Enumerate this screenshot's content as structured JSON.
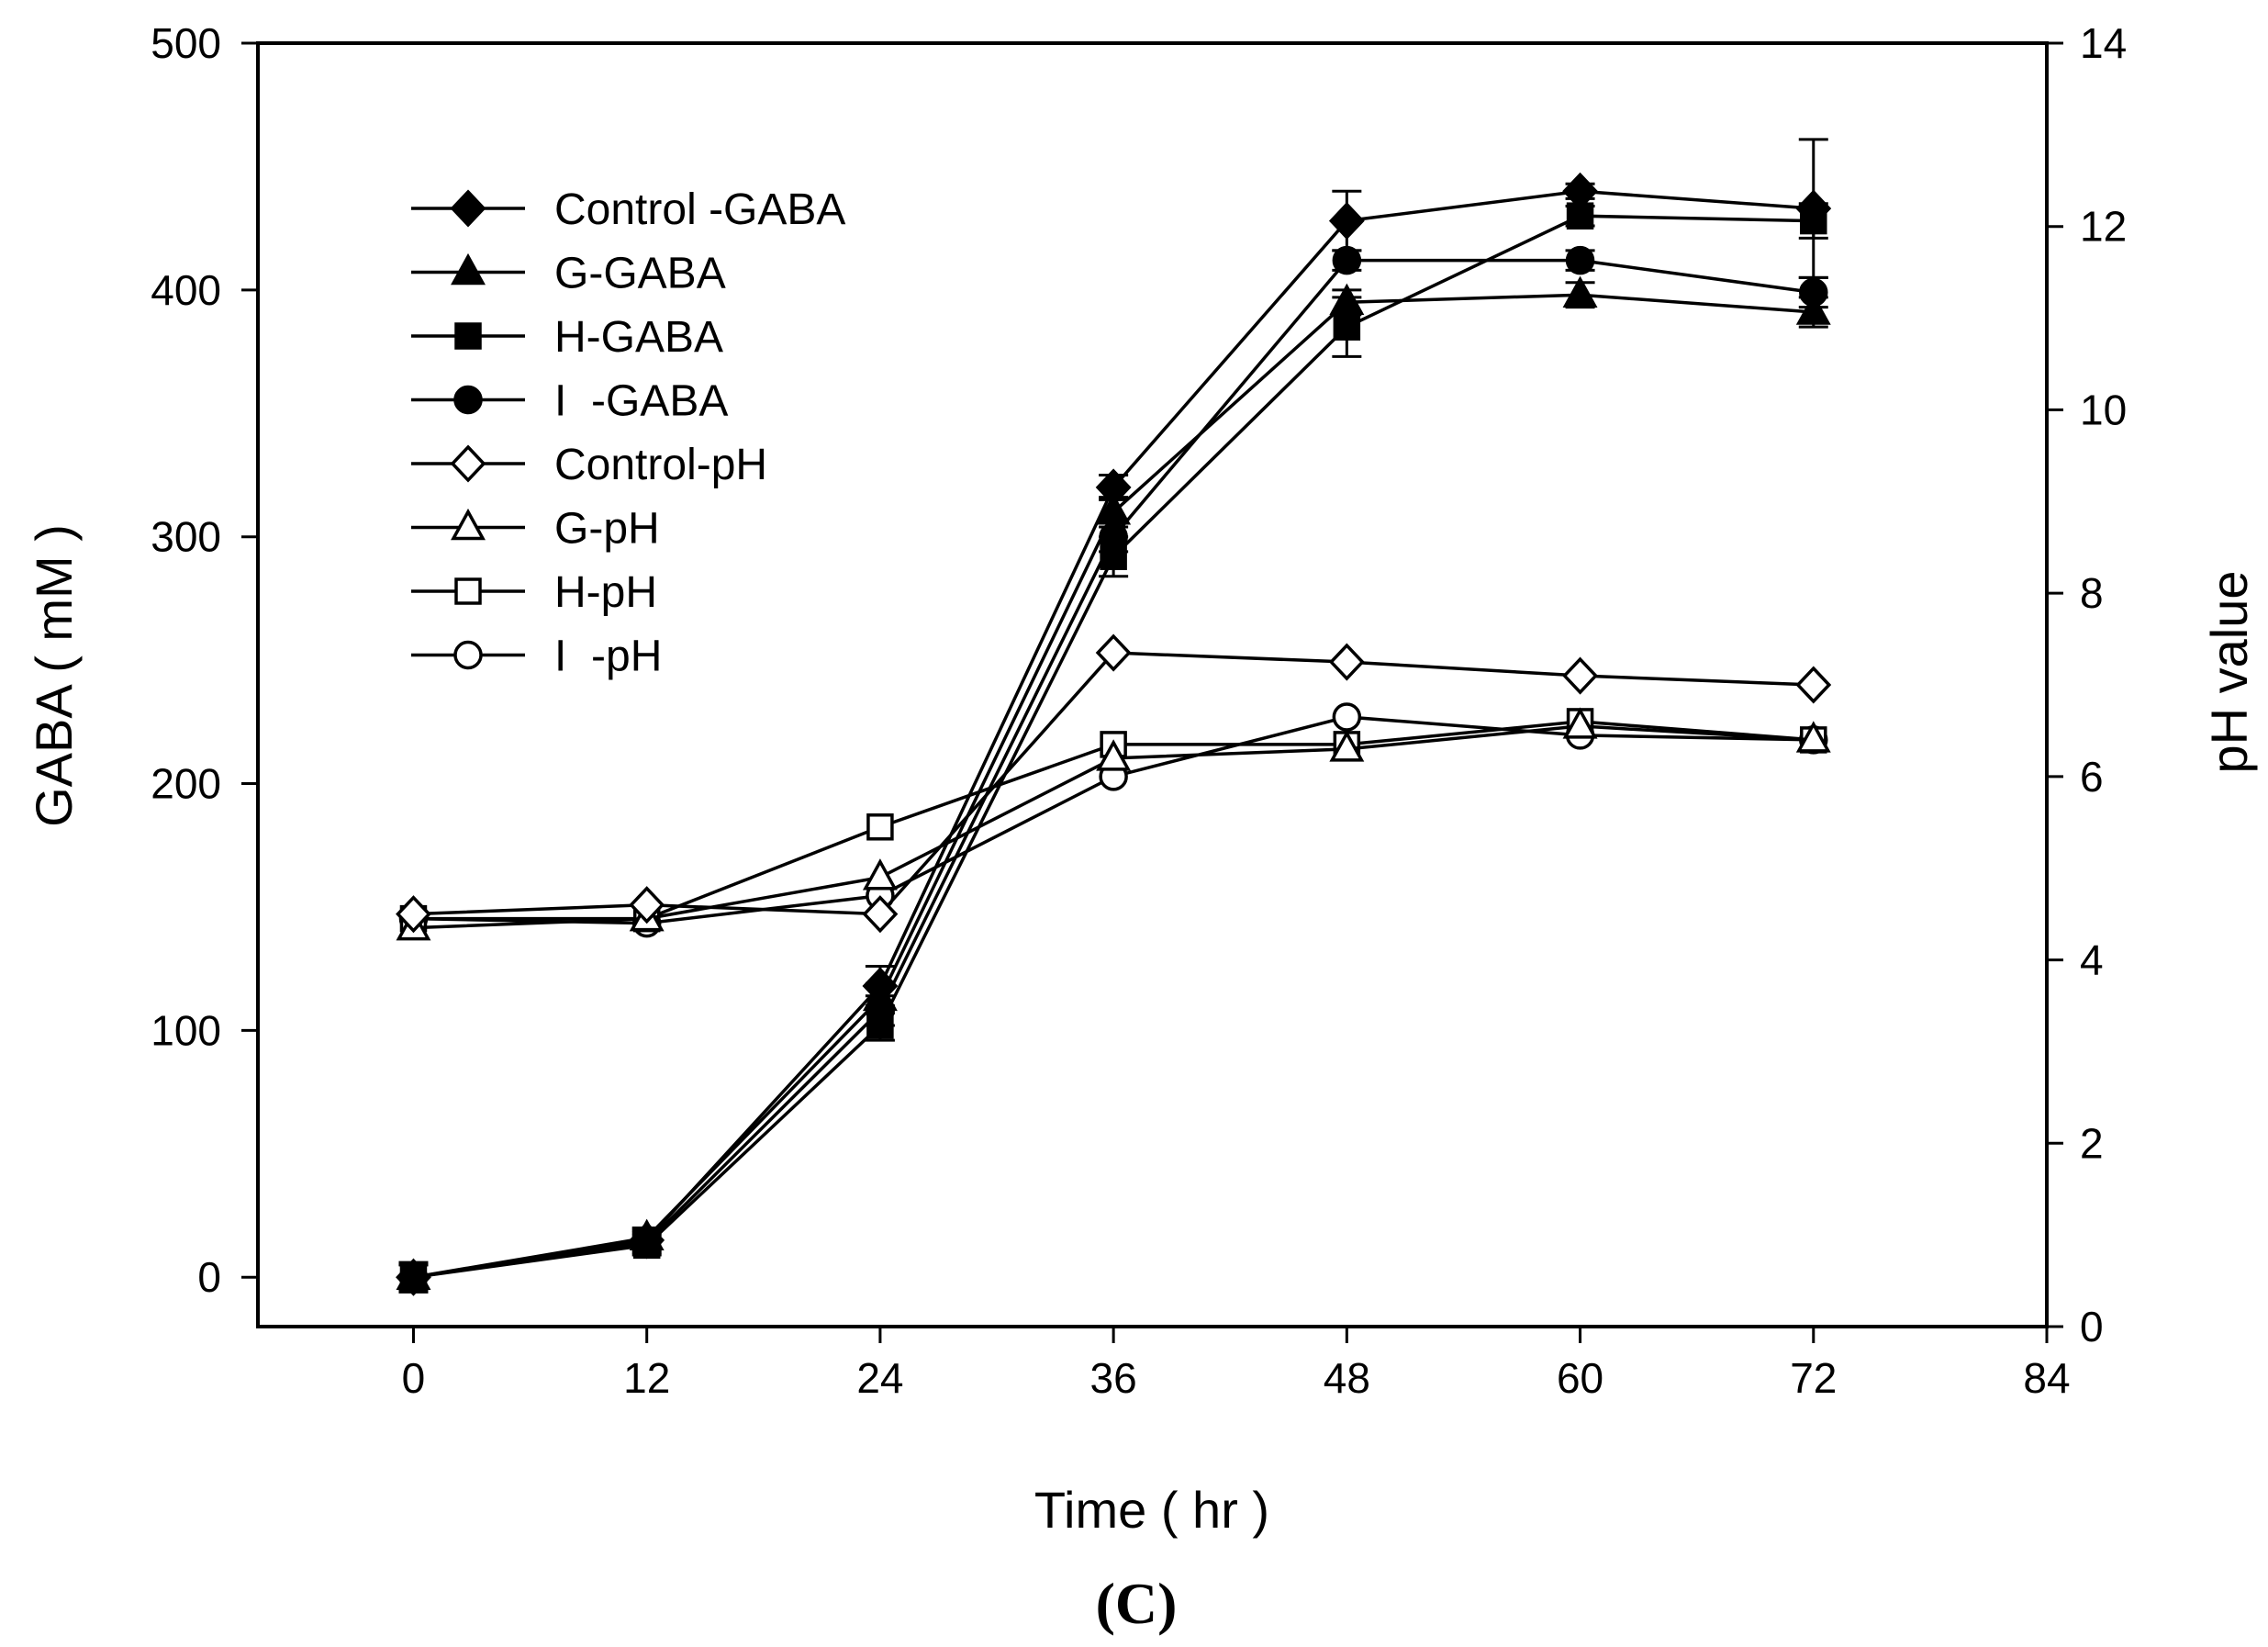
{
  "chart_data": {
    "type": "line",
    "panel_label": "(C)",
    "xlabel": "Time ( hr )",
    "ylabel_left": "GABA ( mM )",
    "ylabel_right": "pH value",
    "xlim": [
      -8,
      84
    ],
    "ylim_left": [
      -20,
      500
    ],
    "ylim_right": [
      0,
      14
    ],
    "x_ticks": [
      0,
      12,
      24,
      36,
      48,
      60,
      72,
      84
    ],
    "x_tick_labels": [
      "0",
      "12",
      "24",
      "36",
      "48",
      "60",
      "72",
      "84"
    ],
    "y_left_ticks": [
      0,
      100,
      200,
      300,
      400,
      500
    ],
    "y_left_tick_labels": [
      "0",
      "100",
      "200",
      "300",
      "400",
      "500"
    ],
    "y_right_ticks": [
      0,
      2,
      4,
      6,
      8,
      10,
      12,
      14
    ],
    "y_right_tick_labels": [
      "0",
      "2",
      "4",
      "6",
      "8",
      "10",
      "12",
      "14"
    ],
    "grid": false,
    "legend_position": "top-left",
    "x": [
      0,
      12,
      24,
      36,
      48,
      60,
      72
    ],
    "series": [
      {
        "name": "Control -GABA",
        "axis": "left",
        "marker": "diamond",
        "filled": true,
        "values": [
          0,
          15,
          118,
          320,
          428,
          440,
          433
        ],
        "errors": [
          6,
          4,
          8,
          5,
          12,
          3,
          28
        ]
      },
      {
        "name": "G-GABA",
        "axis": "left",
        "marker": "triangle",
        "filled": true,
        "values": [
          0,
          16,
          113,
          310,
          395,
          398,
          391
        ],
        "errors": [
          5,
          4,
          6,
          6,
          5,
          5,
          6
        ]
      },
      {
        "name": "H-GABA",
        "axis": "left",
        "marker": "square",
        "filled": true,
        "values": [
          0,
          13,
          102,
          292,
          385,
          430,
          428
        ],
        "errors": [
          5,
          4,
          6,
          8,
          12,
          4,
          7
        ]
      },
      {
        "name": "I  -GABA",
        "axis": "left",
        "marker": "circle",
        "filled": true,
        "values": [
          0,
          14,
          108,
          300,
          412,
          412,
          399
        ],
        "errors": [
          5,
          4,
          6,
          6,
          4,
          4,
          6
        ]
      },
      {
        "name": "Control-pH",
        "axis": "right",
        "marker": "diamond",
        "filled": false,
        "values": [
          4.5,
          4.6,
          4.5,
          7.35,
          7.25,
          7.1,
          7.0
        ]
      },
      {
        "name": "G-pH",
        "axis": "right",
        "marker": "triangle",
        "filled": false,
        "values": [
          4.35,
          4.45,
          4.9,
          6.2,
          6.3,
          6.55,
          6.4
        ]
      },
      {
        "name": "H-pH",
        "axis": "right",
        "marker": "square",
        "filled": false,
        "values": [
          4.45,
          4.45,
          5.45,
          6.35,
          6.35,
          6.6,
          6.4
        ]
      },
      {
        "name": "I  -pH",
        "axis": "right",
        "marker": "circle",
        "filled": false,
        "values": [
          4.45,
          4.4,
          4.7,
          6.0,
          6.65,
          6.45,
          6.4
        ]
      }
    ]
  }
}
